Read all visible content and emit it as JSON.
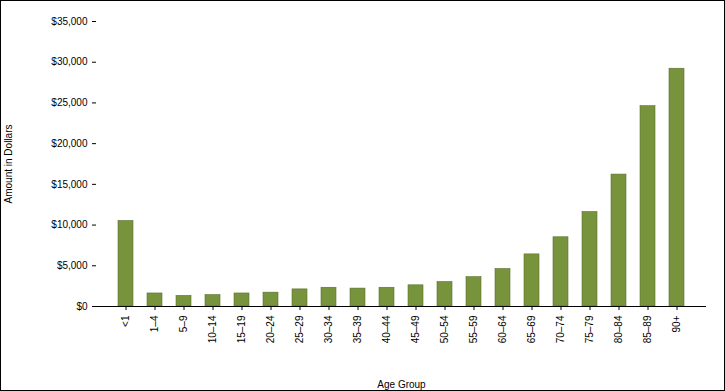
{
  "chart_data": {
    "type": "bar",
    "x_label": "Age Group",
    "y_label": "Amount in Dollars",
    "categories": [
      "<1",
      "1–4",
      "5–9",
      "10–14",
      "15–19",
      "20–24",
      "25–29",
      "30–34",
      "35–39",
      "40–44",
      "45–49",
      "50–54",
      "55–59",
      "60–64",
      "65–69",
      "70–74",
      "75–79",
      "80–84",
      "85–89",
      "90+"
    ],
    "values": [
      10500,
      1600,
      1300,
      1400,
      1600,
      1700,
      2100,
      2300,
      2200,
      2300,
      2600,
      3000,
      3600,
      4600,
      6400,
      8500,
      11600,
      16200,
      24600,
      29200
    ],
    "color": "#77933c",
    "ylim": [
      0,
      35000
    ],
    "yticks": [
      {
        "value": 0,
        "label": "$0"
      },
      {
        "value": 5000,
        "label": "$5,000"
      },
      {
        "value": 10000,
        "label": "$10,000"
      },
      {
        "value": 15000,
        "label": "$15,000"
      },
      {
        "value": 20000,
        "label": "$20,000"
      },
      {
        "value": 25000,
        "label": "$25,000"
      },
      {
        "value": 30000,
        "label": "$30,000"
      },
      {
        "value": 35000,
        "label": "$35,000"
      }
    ],
    "grid": false
  }
}
